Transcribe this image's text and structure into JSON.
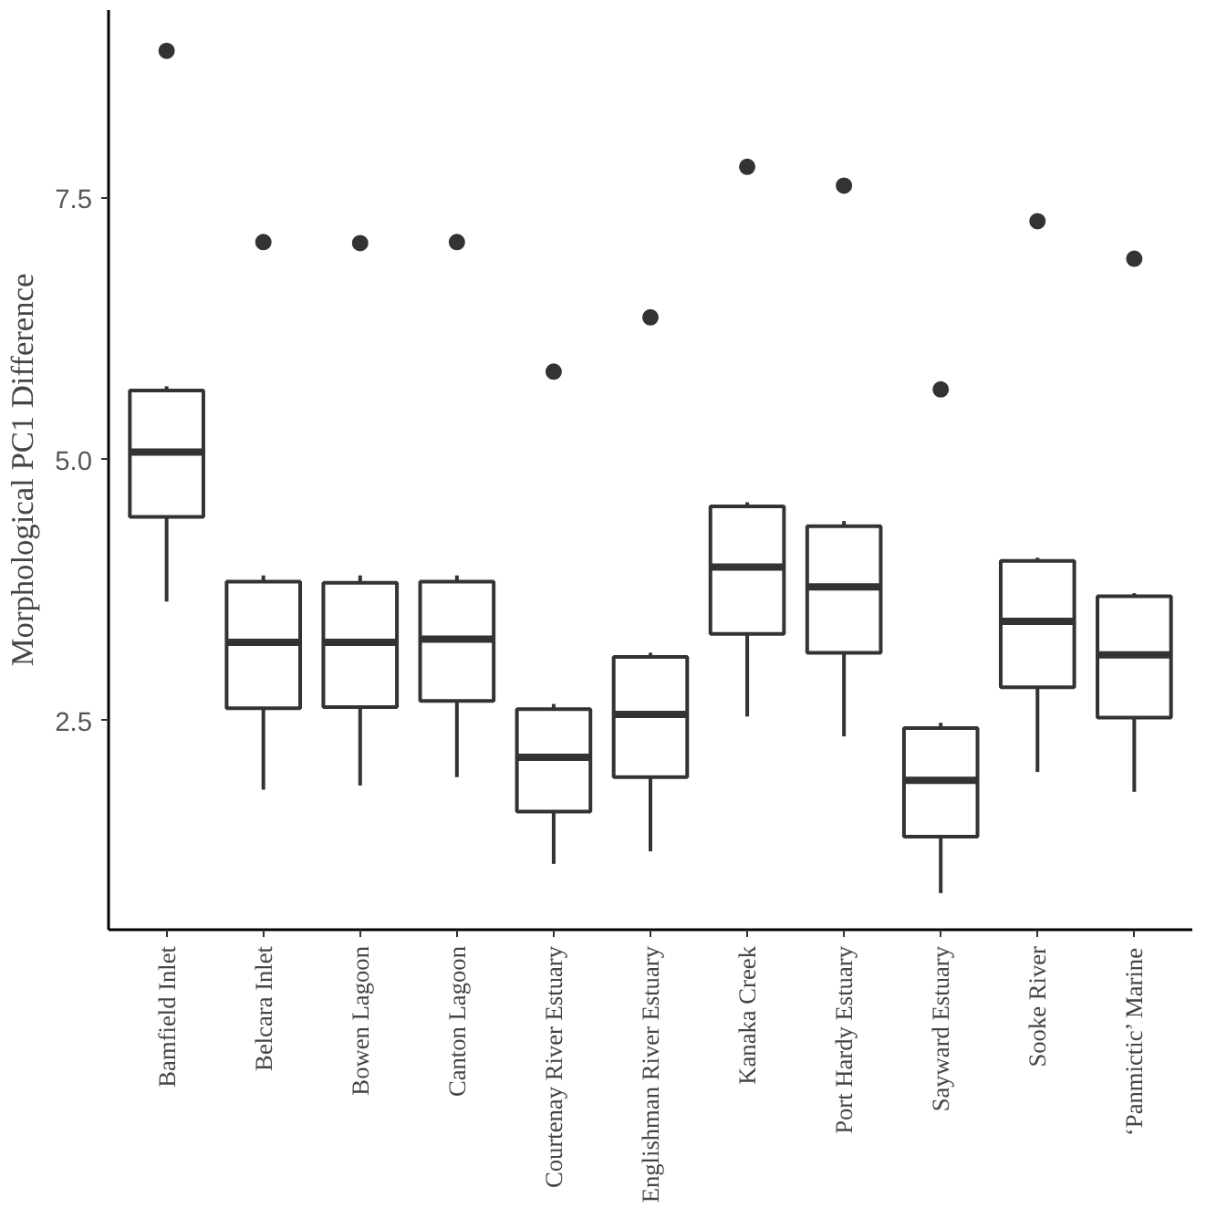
{
  "chart_data": {
    "type": "box",
    "ylabel": "Morphological PC1 Difference",
    "categories": [
      "Bamfield Inlet",
      "Belcara Inlet",
      "Bowen Lagoon",
      "Canton Lagoon",
      "Courtenay River Estuary",
      "Englishman River Estuary",
      "Kanaka Creek",
      "Port Hardy Estuary",
      "Sayward Estuary",
      "Sooke River",
      "‘Panmictic’ Marine"
    ],
    "boxes": [
      {
        "low": 3.64,
        "q1": 4.45,
        "median": 5.07,
        "q3": 5.66,
        "high": 5.7,
        "outliers": [
          8.91
        ]
      },
      {
        "low": 1.84,
        "q1": 2.62,
        "median": 3.25,
        "q3": 3.83,
        "high": 3.89,
        "outliers": [
          7.08
        ]
      },
      {
        "low": 1.88,
        "q1": 2.63,
        "median": 3.25,
        "q3": 3.82,
        "high": 3.89,
        "outliers": [
          7.07
        ]
      },
      {
        "low": 1.96,
        "q1": 2.69,
        "median": 3.28,
        "q3": 3.83,
        "high": 3.89,
        "outliers": [
          7.08
        ]
      },
      {
        "low": 1.13,
        "q1": 1.63,
        "median": 2.15,
        "q3": 2.61,
        "high": 2.66,
        "outliers": [
          5.84
        ]
      },
      {
        "low": 1.25,
        "q1": 1.96,
        "median": 2.56,
        "q3": 3.11,
        "high": 3.15,
        "outliers": [
          6.36
        ]
      },
      {
        "low": 2.54,
        "q1": 3.33,
        "median": 3.97,
        "q3": 4.55,
        "high": 4.59,
        "outliers": [
          7.8
        ]
      },
      {
        "low": 2.35,
        "q1": 3.15,
        "median": 3.78,
        "q3": 4.36,
        "high": 4.41,
        "outliers": [
          7.62
        ]
      },
      {
        "low": 0.85,
        "q1": 1.39,
        "median": 1.93,
        "q3": 2.43,
        "high": 2.48,
        "outliers": [
          5.67
        ]
      },
      {
        "low": 2.01,
        "q1": 2.82,
        "median": 3.45,
        "q3": 4.03,
        "high": 4.06,
        "outliers": [
          7.28
        ]
      },
      {
        "low": 1.82,
        "q1": 2.53,
        "median": 3.13,
        "q3": 3.69,
        "high": 3.72,
        "outliers": [
          6.92
        ]
      }
    ],
    "color": "#333333",
    "ylim": [
      0.5,
      9.3
    ],
    "yticks": [
      2.5,
      {
        "value": 5,
        "label": "5.0"
      },
      7.5
    ],
    "grid": false
  }
}
